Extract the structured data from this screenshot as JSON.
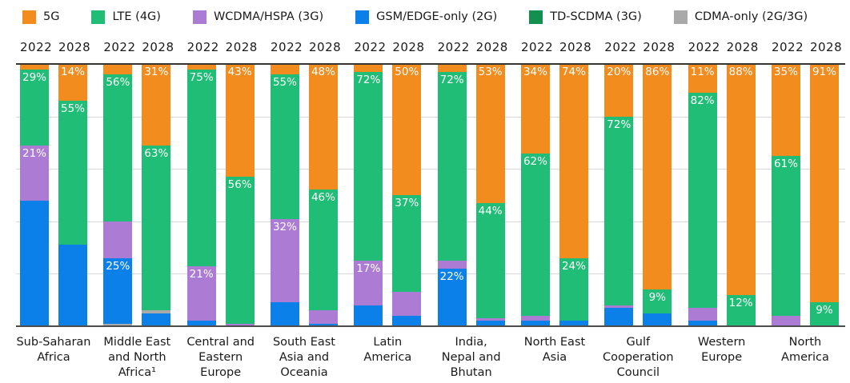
{
  "chart_data": {
    "type": "bar",
    "subtype": "stacked-100-percent",
    "unit": "percent of mobile subscriptions",
    "ylim": [
      0,
      100
    ],
    "grid": true,
    "gridlines_percent": [
      20,
      40,
      60,
      80
    ],
    "legend_position": "top-left",
    "legend": [
      {
        "key": "5g",
        "label": "5G",
        "color": "#F28C1E"
      },
      {
        "key": "lte",
        "label": "LTE (4G)",
        "color": "#1FBD75"
      },
      {
        "key": "wcdma",
        "label": "WCDMA/HSPA (3G)",
        "color": "#AC7CD5"
      },
      {
        "key": "gsm",
        "label": "GSM/EDGE-only (2G)",
        "color": "#0B80E8"
      },
      {
        "key": "tdscdma",
        "label": "TD-SCDMA (3G)",
        "color": "#11904F"
      },
      {
        "key": "cdma",
        "label": "CDMA-only (2G/3G)",
        "color": "#A9A9A9"
      }
    ],
    "years": [
      "2022",
      "2028"
    ],
    "regions": [
      {
        "name": "Sub-Saharan Africa",
        "label_lines": [
          "Sub-Saharan",
          "Africa"
        ],
        "bars": [
          {
            "year": "2022",
            "segments": [
              {
                "key": "gsm",
                "value": 48
              },
              {
                "key": "wcdma",
                "value": 21,
                "label": "21%"
              },
              {
                "key": "lte",
                "value": 29,
                "label": "29%"
              },
              {
                "key": "5g",
                "value": 2
              }
            ]
          },
          {
            "year": "2028",
            "segments": [
              {
                "key": "gsm",
                "value": 31
              },
              {
                "key": "lte",
                "value": 55,
                "label": "55%"
              },
              {
                "key": "5g",
                "value": 14,
                "label": "14%"
              }
            ]
          }
        ]
      },
      {
        "name": "Middle East and North Africa",
        "label_lines": [
          "Middle East",
          "and North",
          "Africa¹"
        ],
        "bars": [
          {
            "year": "2022",
            "segments": [
              {
                "key": "cdma",
                "value": 1
              },
              {
                "key": "gsm",
                "value": 25,
                "label": "25%"
              },
              {
                "key": "wcdma",
                "value": 14
              },
              {
                "key": "lte",
                "value": 56,
                "label": "56%"
              },
              {
                "key": "5g",
                "value": 4
              }
            ]
          },
          {
            "year": "2028",
            "segments": [
              {
                "key": "gsm",
                "value": 5
              },
              {
                "key": "cdma",
                "value": 1
              },
              {
                "key": "lte",
                "value": 63,
                "label": "63%"
              },
              {
                "key": "5g",
                "value": 31,
                "label": "31%"
              }
            ]
          }
        ]
      },
      {
        "name": "Central and Eastern Europe",
        "label_lines": [
          "Central and",
          "Eastern",
          "Europe"
        ],
        "bars": [
          {
            "year": "2022",
            "segments": [
              {
                "key": "gsm",
                "value": 2
              },
              {
                "key": "wcdma",
                "value": 21,
                "label": "21%"
              },
              {
                "key": "lte",
                "value": 75,
                "label": "75%"
              },
              {
                "key": "5g",
                "value": 2
              }
            ]
          },
          {
            "year": "2028",
            "segments": [
              {
                "key": "wcdma",
                "value": 1
              },
              {
                "key": "lte",
                "value": 56,
                "label": "56%"
              },
              {
                "key": "5g",
                "value": 43,
                "label": "43%"
              }
            ]
          }
        ]
      },
      {
        "name": "South East Asia and Oceania",
        "label_lines": [
          "South East",
          "Asia and",
          "Oceania"
        ],
        "bars": [
          {
            "year": "2022",
            "segments": [
              {
                "key": "gsm",
                "value": 9
              },
              {
                "key": "wcdma",
                "value": 32,
                "label": "32%"
              },
              {
                "key": "lte",
                "value": 55,
                "label": "55%"
              },
              {
                "key": "5g",
                "value": 4
              }
            ]
          },
          {
            "year": "2028",
            "segments": [
              {
                "key": "gsm",
                "value": 1
              },
              {
                "key": "wcdma",
                "value": 5
              },
              {
                "key": "lte",
                "value": 46,
                "label": "46%"
              },
              {
                "key": "5g",
                "value": 48,
                "label": "48%"
              }
            ]
          }
        ]
      },
      {
        "name": "Latin America",
        "label_lines": [
          "Latin",
          "America"
        ],
        "bars": [
          {
            "year": "2022",
            "segments": [
              {
                "key": "gsm",
                "value": 8
              },
              {
                "key": "wcdma",
                "value": 17,
                "label": "17%"
              },
              {
                "key": "lte",
                "value": 72,
                "label": "72%"
              },
              {
                "key": "5g",
                "value": 3
              }
            ]
          },
          {
            "year": "2028",
            "segments": [
              {
                "key": "gsm",
                "value": 4
              },
              {
                "key": "wcdma",
                "value": 9
              },
              {
                "key": "lte",
                "value": 37,
                "label": "37%"
              },
              {
                "key": "5g",
                "value": 50,
                "label": "50%"
              }
            ]
          }
        ]
      },
      {
        "name": "India, Nepal and Bhutan",
        "label_lines": [
          "India,",
          "Nepal and",
          "Bhutan"
        ],
        "bars": [
          {
            "year": "2022",
            "segments": [
              {
                "key": "gsm",
                "value": 22,
                "label": "22%"
              },
              {
                "key": "wcdma",
                "value": 3
              },
              {
                "key": "lte",
                "value": 72,
                "label": "72%"
              },
              {
                "key": "5g",
                "value": 3
              }
            ]
          },
          {
            "year": "2028",
            "segments": [
              {
                "key": "gsm",
                "value": 2
              },
              {
                "key": "wcdma",
                "value": 1
              },
              {
                "key": "lte",
                "value": 44,
                "label": "44%"
              },
              {
                "key": "5g",
                "value": 53,
                "label": "53%"
              }
            ]
          }
        ]
      },
      {
        "name": "North East Asia",
        "label_lines": [
          "North East",
          "Asia"
        ],
        "bars": [
          {
            "year": "2022",
            "segments": [
              {
                "key": "gsm",
                "value": 2
              },
              {
                "key": "wcdma",
                "value": 2
              },
              {
                "key": "lte",
                "value": 62,
                "label": "62%"
              },
              {
                "key": "5g",
                "value": 34,
                "label": "34%"
              }
            ]
          },
          {
            "year": "2028",
            "segments": [
              {
                "key": "gsm",
                "value": 2
              },
              {
                "key": "lte",
                "value": 24,
                "label": "24%"
              },
              {
                "key": "5g",
                "value": 74,
                "label": "74%"
              }
            ]
          }
        ]
      },
      {
        "name": "Gulf Cooperation Council",
        "label_lines": [
          "Gulf",
          "Cooperation",
          "Council"
        ],
        "bars": [
          {
            "year": "2022",
            "segments": [
              {
                "key": "gsm",
                "value": 7
              },
              {
                "key": "wcdma",
                "value": 1
              },
              {
                "key": "lte",
                "value": 72,
                "label": "72%"
              },
              {
                "key": "5g",
                "value": 20,
                "label": "20%"
              }
            ]
          },
          {
            "year": "2028",
            "segments": [
              {
                "key": "gsm",
                "value": 5
              },
              {
                "key": "lte",
                "value": 9,
                "label": "9%"
              },
              {
                "key": "5g",
                "value": 86,
                "label": "86%"
              }
            ]
          }
        ]
      },
      {
        "name": "Western Europe",
        "label_lines": [
          "Western",
          "Europe"
        ],
        "bars": [
          {
            "year": "2022",
            "segments": [
              {
                "key": "gsm",
                "value": 2
              },
              {
                "key": "wcdma",
                "value": 5
              },
              {
                "key": "lte",
                "value": 82,
                "label": "82%"
              },
              {
                "key": "5g",
                "value": 11,
                "label": "11%"
              }
            ]
          },
          {
            "year": "2028",
            "segments": [
              {
                "key": "lte",
                "value": 12,
                "label": "12%"
              },
              {
                "key": "5g",
                "value": 88,
                "label": "88%"
              }
            ]
          }
        ]
      },
      {
        "name": "North America",
        "label_lines": [
          "North",
          "America"
        ],
        "bars": [
          {
            "year": "2022",
            "segments": [
              {
                "key": "wcdma",
                "value": 4
              },
              {
                "key": "lte",
                "value": 61,
                "label": "61%"
              },
              {
                "key": "5g",
                "value": 35,
                "label": "35%"
              }
            ]
          },
          {
            "year": "2028",
            "segments": [
              {
                "key": "lte",
                "value": 9,
                "label": "9%"
              },
              {
                "key": "5g",
                "value": 91,
                "label": "91%"
              }
            ]
          }
        ]
      }
    ]
  }
}
